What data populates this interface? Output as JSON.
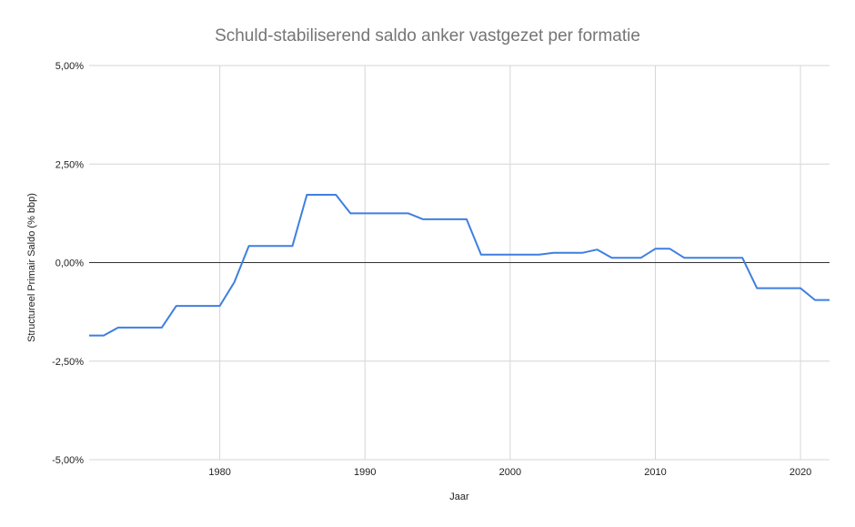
{
  "chart_data": {
    "type": "line",
    "title": "Schuld-stabiliserend saldo anker vastgezet per formatie",
    "xlabel": "Jaar",
    "ylabel": "Structureel Primair Saldo (% bbp)",
    "xlim": [
      1971,
      2022
    ],
    "ylim": [
      -5,
      5
    ],
    "x_ticks": [
      1980,
      1990,
      2000,
      2010,
      2020
    ],
    "y_ticks": [
      -5,
      -2.5,
      0,
      2.5,
      5
    ],
    "y_tick_labels": [
      "-5,00%",
      "-2,50%",
      "0,00%",
      "2,50%",
      "5,00%"
    ],
    "grid": true,
    "legend": "none",
    "series": [
      {
        "color": "#3f7fe0",
        "x": [
          1971,
          1972,
          1973,
          1974,
          1975,
          1976,
          1977,
          1978,
          1979,
          1980,
          1981,
          1982,
          1983,
          1984,
          1985,
          1986,
          1987,
          1988,
          1989,
          1990,
          1991,
          1992,
          1993,
          1994,
          1995,
          1996,
          1997,
          1998,
          1999,
          2000,
          2001,
          2002,
          2003,
          2004,
          2005,
          2006,
          2007,
          2008,
          2009,
          2010,
          2011,
          2012,
          2013,
          2014,
          2015,
          2016,
          2017,
          2018,
          2019,
          2020,
          2021,
          2022
        ],
        "values": [
          -1.85,
          -1.85,
          -1.65,
          -1.65,
          -1.65,
          -1.65,
          -1.1,
          -1.1,
          -1.1,
          -1.1,
          -0.5,
          0.42,
          0.42,
          0.42,
          0.42,
          1.72,
          1.72,
          1.72,
          1.25,
          1.25,
          1.25,
          1.25,
          1.25,
          1.1,
          1.1,
          1.1,
          1.1,
          0.2,
          0.2,
          0.2,
          0.2,
          0.2,
          0.25,
          0.25,
          0.25,
          0.33,
          0.12,
          0.12,
          0.12,
          0.35,
          0.35,
          0.12,
          0.12,
          0.12,
          0.12,
          0.12,
          -0.65,
          -0.65,
          -0.65,
          -0.65,
          -0.95,
          -0.95
        ]
      }
    ]
  }
}
